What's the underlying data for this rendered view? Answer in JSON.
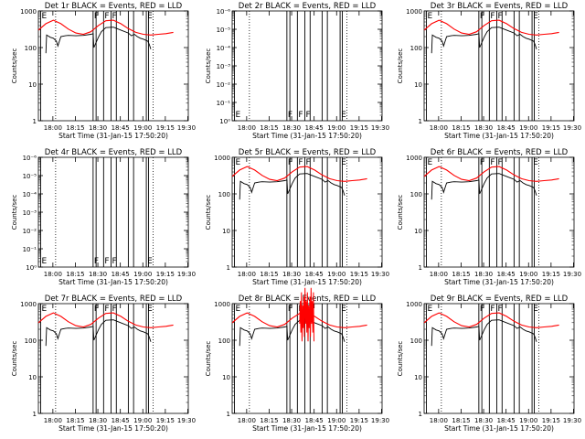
{
  "chart_data": [
    {
      "panel": "1r",
      "title": "Det 1r BLACK = Events, RED = LLD",
      "ylabel": "Counts/sec",
      "xlabel": "Start Time (31-Jan-15 17:50:20)",
      "type": "line",
      "yscale": "log",
      "yticks": [
        "1",
        "10",
        "100",
        "1000"
      ],
      "xticks": [
        "18:00",
        "18:15",
        "18:30",
        "18:45",
        "19:00",
        "19:15",
        "19:30"
      ],
      "has_data": true,
      "variant": "normal"
    },
    {
      "panel": "2r",
      "title": "Det 2r BLACK = Events, RED = LLD",
      "ylabel": "Counts/sec",
      "xlabel": "Start Time (31-Jan-15 17:50:20)",
      "type": "line",
      "yscale": "log",
      "yticks": [
        "10⁰",
        "10⁻¹",
        "10⁻²",
        "10⁻³",
        "10⁻⁴",
        "10⁻⁵",
        "10⁻⁶"
      ],
      "xticks": [
        "18:00",
        "18:15",
        "18:30",
        "18:45",
        "19:00",
        "19:15",
        "19:30"
      ],
      "has_data": false,
      "variant": "empty"
    },
    {
      "panel": "3r",
      "title": "Det 3r BLACK = Events, RED = LLD",
      "ylabel": "Counts/sec",
      "xlabel": "Start Time (31-Jan-15 17:50:20)",
      "type": "line",
      "yscale": "log",
      "yticks": [
        "1",
        "10",
        "100",
        "1000"
      ],
      "xticks": [
        "18:00",
        "18:15",
        "18:30",
        "18:45",
        "19:00",
        "19:15",
        "19:30"
      ],
      "has_data": true,
      "variant": "normal"
    },
    {
      "panel": "4r",
      "title": "Det 4r BLACK = Events, RED = LLD",
      "ylabel": "Counts/sec",
      "xlabel": "Start Time (31-Jan-15 17:50:20)",
      "type": "line",
      "yscale": "log",
      "yticks": [
        "10⁰",
        "10⁻¹",
        "10⁻²",
        "10⁻³",
        "10⁻⁴",
        "10⁻⁵",
        "10⁻⁶"
      ],
      "xticks": [
        "18:00",
        "18:15",
        "18:30",
        "18:45",
        "19:00",
        "19:15",
        "19:30"
      ],
      "has_data": false,
      "variant": "empty"
    },
    {
      "panel": "5r",
      "title": "Det 5r BLACK = Events, RED = LLD",
      "ylabel": "Counts/sec",
      "xlabel": "Start Time (31-Jan-15 17:50:20)",
      "type": "line",
      "yscale": "log",
      "yticks": [
        "1",
        "10",
        "100",
        "1000"
      ],
      "xticks": [
        "18:00",
        "18:15",
        "18:30",
        "18:45",
        "19:00",
        "19:15",
        "19:30"
      ],
      "has_data": true,
      "variant": "normal"
    },
    {
      "panel": "6r",
      "title": "Det 6r BLACK = Events, RED = LLD",
      "ylabel": "Counts/sec",
      "xlabel": "Start Time (31-Jan-15 17:50:20)",
      "type": "line",
      "yscale": "log",
      "yticks": [
        "1",
        "10",
        "100",
        "1000"
      ],
      "xticks": [
        "18:00",
        "18:15",
        "18:30",
        "18:45",
        "19:00",
        "19:15",
        "19:30"
      ],
      "has_data": true,
      "variant": "normal"
    },
    {
      "panel": "7r",
      "title": "Det 7r BLACK = Events, RED = LLD",
      "ylabel": "Counts/sec",
      "xlabel": "Start Time (31-Jan-15 17:50:20)",
      "type": "line",
      "yscale": "log",
      "yticks": [
        "1",
        "10",
        "100",
        "1000"
      ],
      "xticks": [
        "18:00",
        "18:15",
        "18:30",
        "18:45",
        "19:00",
        "19:15",
        "19:30"
      ],
      "has_data": true,
      "variant": "normal"
    },
    {
      "panel": "8r",
      "title": "Det 8r BLACK = Events, RED = LLD",
      "ylabel": "Counts/sec",
      "xlabel": "Start Time (31-Jan-15 17:50:20)",
      "type": "line",
      "yscale": "log",
      "yticks": [
        "1",
        "10",
        "100",
        "1000"
      ],
      "xticks": [
        "18:00",
        "18:15",
        "18:30",
        "18:45",
        "19:00",
        "19:15",
        "19:30"
      ],
      "has_data": true,
      "variant": "noisy"
    },
    {
      "panel": "9r",
      "title": "Det 9r BLACK = Events, RED = LLD",
      "ylabel": "Counts/sec",
      "xlabel": "Start Time (31-Jan-15 17:50:20)",
      "type": "line",
      "yscale": "log",
      "yticks": [
        "1",
        "10",
        "100",
        "1000"
      ],
      "xticks": [
        "18:00",
        "18:15",
        "18:30",
        "18:45",
        "19:00",
        "19:15",
        "19:30"
      ],
      "has_data": true,
      "variant": "normal"
    }
  ],
  "time_range": {
    "start_min": 0,
    "end_min": 100
  },
  "tick_minutes": [
    9.67,
    24.67,
    39.67,
    54.67,
    69.67,
    84.67,
    99.67
  ],
  "event_lines": [
    {
      "min": 1.5,
      "label": "E"
    },
    {
      "min": 11.5,
      "label": "",
      "dotted": true
    },
    {
      "min": 36.5,
      "label": "F"
    },
    {
      "min": 38.5,
      "label": ""
    },
    {
      "min": 43.5,
      "label": "F"
    },
    {
      "min": 48.5,
      "label": "F"
    },
    {
      "min": 52.0,
      "label": ""
    },
    {
      "min": 60.0,
      "label": ""
    },
    {
      "min": 63.5,
      "label": ""
    },
    {
      "min": 72.0,
      "label": "E"
    },
    {
      "min": 73.5,
      "label": ""
    },
    {
      "min": 76.5,
      "label": "",
      "dotted": true
    }
  ],
  "series_events": {
    "name": "Events",
    "times": [
      5,
      5.5,
      8,
      10,
      12,
      13,
      15,
      18,
      20,
      25,
      30,
      35,
      36.5,
      37,
      40,
      42,
      45,
      50,
      55,
      60,
      62,
      64,
      66,
      68,
      70,
      73,
      74,
      75
    ],
    "values": [
      70,
      220,
      190,
      180,
      150,
      110,
      200,
      210,
      215,
      210,
      215,
      230,
      240,
      100,
      190,
      270,
      350,
      360,
      300,
      250,
      210,
      230,
      200,
      180,
      170,
      150,
      120,
      90
    ]
  },
  "series_lld": {
    "name": "LLD",
    "times": [
      0,
      5,
      10,
      15,
      20,
      25,
      30,
      35,
      40,
      45,
      50,
      55,
      60,
      65,
      70,
      75,
      80,
      85,
      90
    ],
    "values": [
      300,
      450,
      560,
      450,
      320,
      250,
      230,
      270,
      400,
      540,
      560,
      450,
      330,
      260,
      230,
      220,
      230,
      240,
      260
    ]
  },
  "colors": {
    "events": "#000000",
    "lld": "#ff0000",
    "axis": "#000000",
    "background": "#ffffff"
  }
}
